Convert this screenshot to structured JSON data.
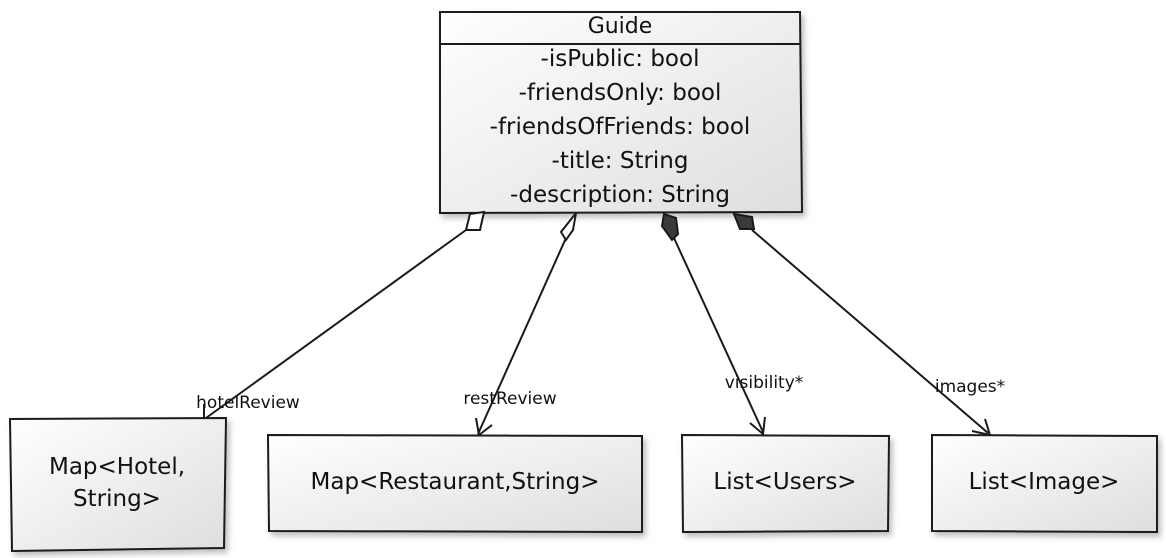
{
  "diagram": {
    "guide": {
      "name": "Guide",
      "attributes": [
        "-isPublic: bool",
        "-friendsOnly: bool",
        "-friendsOfFriends: bool",
        "-title: String",
        "-description: String"
      ]
    },
    "nodes": {
      "hotel_map": {
        "line1": "Map<Hotel,",
        "line2": "String>"
      },
      "restaurant_map": {
        "label": "Map<Restaurant,String>"
      },
      "users_list": {
        "label": "List<Users>"
      },
      "images_list": {
        "label": "List<Image>"
      }
    },
    "edges": {
      "hotel_review": {
        "label": "hotelReview",
        "kind": "aggregation"
      },
      "rest_review": {
        "label": "restReview",
        "kind": "aggregation"
      },
      "visibility": {
        "label": "visibility*",
        "kind": "composition"
      },
      "images": {
        "label": "images*",
        "kind": "composition"
      }
    },
    "colors": {
      "stroke": "#1a1a1a",
      "box_fill_top": "#ffffff",
      "box_fill_bottom": "#e4e4e4",
      "diamond_filled": "#3a3a3a",
      "diamond_open": "#ffffff"
    }
  }
}
